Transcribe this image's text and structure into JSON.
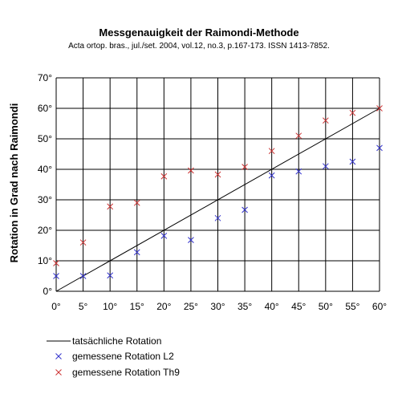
{
  "chart_data": {
    "type": "scatter",
    "title": "Messgenauigkeit der Raimondi-Methode",
    "subtitle": "Acta ortop. bras., jul./set. 2004, vol.12, no.3, p.167-173. ISSN 1413-7852.",
    "xlabel": "",
    "ylabel": "Rotation in Grad nach Raimondi",
    "xlim": [
      0,
      60
    ],
    "ylim": [
      0,
      70
    ],
    "x_ticks": [
      "0°",
      "5°",
      "10°",
      "15°",
      "20°",
      "25°",
      "30°",
      "35°",
      "40°",
      "45°",
      "50°",
      "55°",
      "60°"
    ],
    "y_ticks": [
      "0°",
      "10°",
      "20°",
      "30°",
      "40°",
      "50°",
      "60°",
      "70°"
    ],
    "grid": true,
    "legend_position": "bottom",
    "series": [
      {
        "name": "tatsächliche Rotation",
        "kind": "line",
        "color": "#000000",
        "x": [
          0,
          60
        ],
        "y": [
          0,
          60
        ]
      },
      {
        "name": "gemessene Rotation L2",
        "kind": "marker",
        "marker": "x",
        "color": "#3333cc",
        "x": [
          0,
          5,
          10,
          15,
          20,
          25,
          30,
          35,
          40,
          45,
          50,
          55,
          60
        ],
        "y": [
          5,
          5,
          5.2,
          12.8,
          18.2,
          16.8,
          24,
          26.7,
          38,
          39.3,
          41,
          42.5,
          47
        ]
      },
      {
        "name": "gemessene Rotation Th9",
        "kind": "marker",
        "marker": "x",
        "color": "#cc3333",
        "x": [
          0,
          5,
          10,
          15,
          20,
          25,
          30,
          35,
          40,
          45,
          50,
          55,
          60
        ],
        "y": [
          9.2,
          16,
          27.8,
          29,
          37.7,
          39.6,
          38.3,
          40.8,
          46,
          51,
          56,
          58.5,
          60
        ]
      }
    ]
  }
}
